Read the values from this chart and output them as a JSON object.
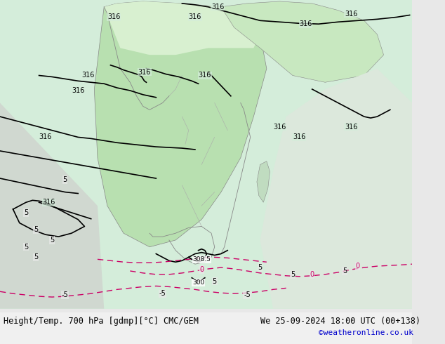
{
  "title_left": "Height/Temp. 700 hPa [gdmp][°C] CMC/GEM",
  "title_right": "We 25-09-2024 18:00 UTC (00+138)",
  "credit": "©weatheronline.co.uk",
  "bg_color": "#e8e8e8",
  "map_bg_color": "#d4edda",
  "figsize": [
    6.34,
    4.9
  ],
  "dpi": 100,
  "bottom_text_color": "#000000",
  "credit_color": "#0000cc",
  "bottom_bar_color": "#f0f0f0",
  "title_fontsize": 8.5,
  "credit_fontsize": 8.0
}
